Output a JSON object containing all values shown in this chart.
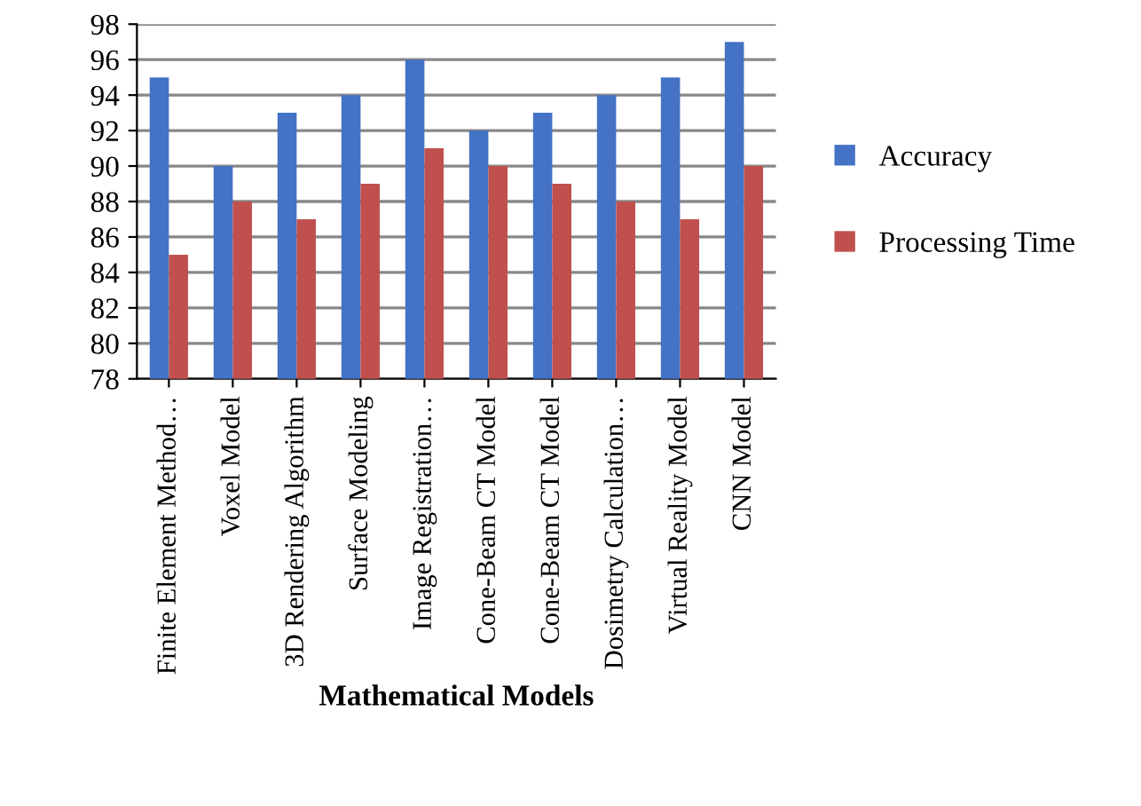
{
  "chart_data": {
    "type": "bar",
    "xlabel": "Mathematical Models",
    "categories": [
      "Finite Element Method…",
      "Voxel Model",
      "3D Rendering Algorithm",
      "Surface Modeling",
      "Image Registration…",
      "Cone-Beam CT Model",
      "Cone-Beam CT Model",
      "Dosimetry Calculation…",
      "Virtual Reality Model",
      "CNN Model"
    ],
    "series": [
      {
        "name": "Accuracy",
        "color": "#4472c4",
        "values": [
          95,
          90,
          93,
          94,
          96,
          92,
          93,
          94,
          95,
          97
        ]
      },
      {
        "name": "Processing Time",
        "color": "#c0504d",
        "values": [
          85,
          88,
          87,
          89,
          91,
          90,
          89,
          88,
          87,
          90
        ]
      }
    ],
    "ylim": [
      78,
      98
    ],
    "yticks": [
      78,
      80,
      82,
      84,
      86,
      88,
      90,
      92,
      94,
      96,
      98
    ],
    "grid": "y",
    "legend": "right"
  }
}
